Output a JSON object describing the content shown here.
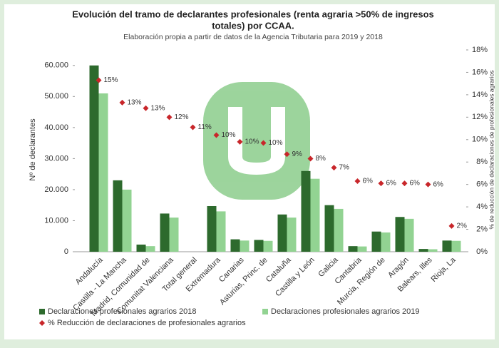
{
  "chart_data": {
    "type": "bar",
    "title": [
      "Evolución del tramo de declarantes profesionales (renta agraria >50% de ingresos",
      "totales) por CCAA."
    ],
    "subtitle": "Elaboración propia a partir de datos de la Agencia Tributaria para 2019 y 2018",
    "y_label": "Nº de declarantes",
    "y2_label": "% de reducción de declaraciones de profesionales agrarios",
    "categories": [
      "Andalucía",
      "Castilla - La Mancha",
      "Madrid, Comunidad de",
      "Comunitat Valenciana",
      "Total general",
      "Extremadura",
      "Canarias",
      "Asturias, Princ. de",
      "Cataluña",
      "Castilla y León",
      "Galicia",
      "Cantabria",
      "Murcia, Región de",
      "Aragón",
      "Balears, Illes",
      "Rioja, La"
    ],
    "series": [
      {
        "name": "Declaraciones profesionales agrarios 2018",
        "color": "#2d6a2d",
        "values": [
          60000,
          23000,
          2300,
          12300,
          null,
          14700,
          4000,
          3800,
          12000,
          26000,
          15000,
          1800,
          6500,
          11200,
          900,
          3600
        ]
      },
      {
        "name": "Declaraciones profesionales agrarios 2019",
        "color": "#92d392",
        "values": [
          51000,
          20000,
          1800,
          11000,
          null,
          13000,
          3600,
          3500,
          11000,
          23500,
          13800,
          1700,
          6200,
          10600,
          800,
          3500
        ]
      },
      {
        "name": "% Reducción de declaraciones de profesionales agrarios",
        "color": "#c8262a",
        "axis": "y2",
        "type": "scatter",
        "values": [
          15.3,
          13.3,
          12.8,
          12.0,
          11.1,
          10.4,
          9.8,
          9.7,
          8.7,
          8.3,
          7.5,
          6.3,
          6.1,
          6.1,
          6.0,
          2.3
        ],
        "value_labels": [
          "15%",
          "13%",
          "13%",
          "12%",
          "11%",
          "10%",
          "10%",
          "10%",
          "9%",
          "8%",
          "7%",
          "6%",
          "6%",
          "6%",
          "6%",
          "2%"
        ]
      }
    ],
    "ylim": [
      0,
      65000
    ],
    "yticks": [
      0,
      {
        "value": 10000,
        "label": "10.000"
      },
      {
        "value": 20000,
        "label": "20.000"
      },
      {
        "value": 30000,
        "label": "30.000"
      },
      {
        "value": 40000,
        "label": "40.000"
      },
      {
        "value": 50000,
        "label": "50.000"
      },
      {
        "value": 60000,
        "label": "60.000"
      }
    ],
    "y2lim": [
      0,
      18
    ],
    "y2ticks": [
      {
        "value": 0,
        "label": "0%"
      },
      {
        "value": 2,
        "label": "2%"
      },
      {
        "value": 4,
        "label": "4%"
      },
      {
        "value": 6,
        "label": "6%"
      },
      {
        "value": 8,
        "label": "8%"
      },
      {
        "value": 10,
        "label": "10%"
      },
      {
        "value": 12,
        "label": "12%"
      },
      {
        "value": 14,
        "label": "14%"
      },
      {
        "value": 16,
        "label": "16%"
      },
      {
        "value": 18,
        "label": "18%"
      }
    ],
    "grid": false,
    "legend": "bottom"
  }
}
